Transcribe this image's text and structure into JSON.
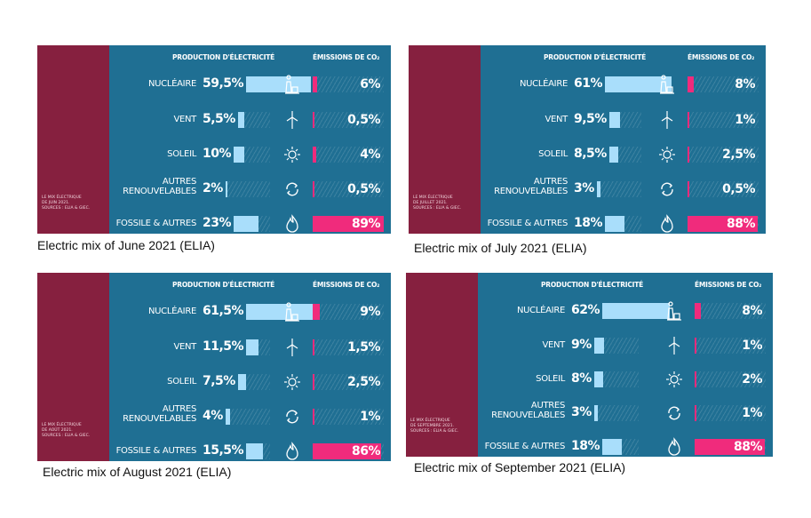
{
  "headers": {
    "production": "PRODUCTION D'ÉLECTRICITÉ",
    "emissions": "ÉMISSIONS DE CO₂"
  },
  "icons": [
    "nuclear-plant-icon",
    "wind-turbine-icon",
    "sun-icon",
    "recycle-arrows-icon",
    "flame-icon"
  ],
  "colors": {
    "panel": "#1f6f93",
    "side": "#86203f",
    "production_bar": "#a9defb",
    "emission_bar": "#f02b7c"
  },
  "chart_data": [
    {
      "type": "bar",
      "caption": "Electric mix of June 2021  (ELIA)",
      "source": "LE MIX ÉLECTRIQUE\nDE JUIN 2021.\nSOURCES : ELIA & GIEC.",
      "categories": [
        "NUCLÉAIRE",
        "VENT",
        "SOLEIL",
        "AUTRES\nRENOUVELABLES",
        "FOSSILE & AUTRES"
      ],
      "production": {
        "values": [
          59.5,
          5.5,
          10,
          2,
          23
        ],
        "labels": [
          "59,5%",
          "5,5%",
          "10%",
          "2%",
          "23%"
        ]
      },
      "emissions": {
        "values": [
          6,
          0.5,
          4,
          0.5,
          89
        ],
        "labels": [
          "6%",
          "0,5%",
          "4%",
          "0,5%",
          "89%"
        ]
      }
    },
    {
      "type": "bar",
      "caption": "Electric mix of July 2021  (ELIA)",
      "source": "LE MIX ÉLECTRIQUE\nDE JUILLET 2021.\nSOURCES : ELIA & GIEC.",
      "categories": [
        "NUCLÉAIRE",
        "VENT",
        "SOLEIL",
        "AUTRES\nRENOUVELABLES",
        "FOSSILE & AUTRES"
      ],
      "production": {
        "values": [
          61,
          9.5,
          8.5,
          3,
          18
        ],
        "labels": [
          "61%",
          "9,5%",
          "8,5%",
          "3%",
          "18%"
        ]
      },
      "emissions": {
        "values": [
          8,
          1,
          2.5,
          0.5,
          88
        ],
        "labels": [
          "8%",
          "1%",
          "2,5%",
          "0,5%",
          "88%"
        ]
      }
    },
    {
      "type": "bar",
      "caption": "Electric mix of August 2021 (ELIA)",
      "source": "LE MIX ÉLECTRIQUE\nDE AOÛT 2021.\nSOURCES : ELIA & GIEC.",
      "categories": [
        "NUCLÉAIRE",
        "VENT",
        "SOLEIL",
        "AUTRES\nRENOUVELABLES",
        "FOSSILE & AUTRES"
      ],
      "production": {
        "values": [
          61.5,
          11.5,
          7.5,
          4,
          15.5
        ],
        "labels": [
          "61,5%",
          "11,5%",
          "7,5%",
          "4%",
          "15,5%"
        ]
      },
      "emissions": {
        "values": [
          9,
          1.5,
          2.5,
          1,
          86
        ],
        "labels": [
          "9%",
          "1,5%",
          "2,5%",
          "1%",
          "86%"
        ]
      }
    },
    {
      "type": "bar",
      "caption": "Electric mix of September 2021  (ELIA)",
      "source": "LE MIX ÉLECTRIQUE\nDE SEPTEMBRE 2021.\nSOURCES : ELIA & GIEC.",
      "categories": [
        "NUCLÉAIRE",
        "VENT",
        "SOLEIL",
        "AUTRES\nRENOUVELABLES",
        "FOSSILE & AUTRES"
      ],
      "production": {
        "values": [
          62,
          9,
          8,
          3,
          18
        ],
        "labels": [
          "62%",
          "9%",
          "8%",
          "3%",
          "18%"
        ]
      },
      "emissions": {
        "values": [
          8,
          1,
          2,
          1,
          88
        ],
        "labels": [
          "8%",
          "1%",
          "2%",
          "1%",
          "88%"
        ]
      }
    }
  ]
}
